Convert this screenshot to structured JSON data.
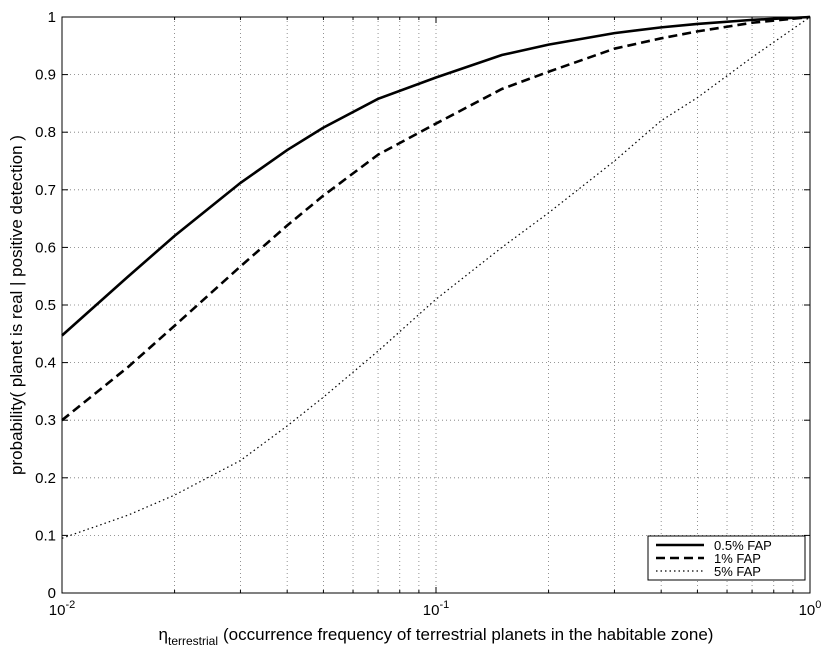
{
  "chart_data": {
    "type": "line",
    "ylabel": "probability( planet is real | positive detection )",
    "xlabel": {
      "symbol": "η",
      "subscript": "terrestrial",
      "text": "(occurrence frequency of terrestrial planets in the habitable zone)"
    },
    "xscale": "log",
    "xlim": [
      0.01,
      1
    ],
    "xticks": [
      {
        "value": 0.01,
        "label": "10",
        "exponent": "-2"
      },
      {
        "value": 0.1,
        "label": "10",
        "exponent": "-1"
      },
      {
        "value": 1,
        "label": "10",
        "exponent": "0"
      }
    ],
    "xminor": [
      0.02,
      0.03,
      0.04,
      0.05,
      0.06,
      0.07,
      0.08,
      0.09,
      0.2,
      0.3,
      0.4,
      0.5,
      0.6,
      0.7,
      0.8,
      0.9
    ],
    "ylim": [
      0,
      1
    ],
    "yticks": [
      0,
      0.1,
      0.2,
      0.3,
      0.4,
      0.5,
      0.6,
      0.7,
      0.8,
      0.9,
      1
    ],
    "grid": true,
    "legend": "lower right",
    "x": [
      0.01,
      0.015,
      0.02,
      0.03,
      0.04,
      0.05,
      0.07,
      0.1,
      0.15,
      0.2,
      0.3,
      0.4,
      0.5,
      0.7,
      1
    ],
    "series": [
      {
        "name": "0.5% FAP",
        "color": "#000000",
        "dash": "solid",
        "values": [
          0.447,
          0.549,
          0.62,
          0.712,
          0.769,
          0.808,
          0.858,
          0.895,
          0.934,
          0.952,
          0.972,
          0.982,
          0.988,
          0.995,
          1
        ]
      },
      {
        "name": "1% FAP",
        "color": "#000000",
        "dash": "dashed",
        "values": [
          0.3,
          0.392,
          0.464,
          0.567,
          0.638,
          0.69,
          0.761,
          0.815,
          0.875,
          0.905,
          0.945,
          0.963,
          0.975,
          0.99,
          1
        ]
      },
      {
        "name": "5% FAP",
        "color": "#000000",
        "dash": "dotted",
        "values": [
          0.095,
          0.135,
          0.17,
          0.23,
          0.29,
          0.34,
          0.42,
          0.51,
          0.6,
          0.66,
          0.75,
          0.82,
          0.86,
          0.93,
          1
        ]
      }
    ]
  }
}
